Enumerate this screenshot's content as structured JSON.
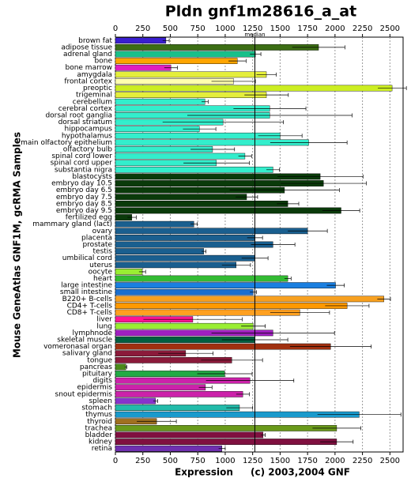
{
  "chart_data": {
    "type": "barh",
    "title": "Pldn gnf1m28616_a_at",
    "ylabel": "Mouse GeneAtlas GNF1M, gcRMA Samples",
    "xlabel": "Expression",
    "credit": "(c) 2003,2004 GNF",
    "median": 1270,
    "median_label": "median",
    "categories": [
      "brown fat",
      "adipose tissue",
      "adrenal gland",
      "bone",
      "bone marrow",
      "amygdala",
      "frontal cortex",
      "preoptic",
      "trigeminal",
      "cerebellum",
      "cerebral cortex",
      "dorsal root ganglia",
      "dorsal striatum",
      "hippocampus",
      "hypothalamus",
      "main olfactory epithelium",
      "olfactory bulb",
      "spinal cord lower",
      "spinal cord upper",
      "substantia nigra",
      "blastocysts",
      "embryo day 10.5",
      "embryo day 6.5",
      "embryo day 7.5",
      "embryo day 8.5",
      "embryo day 9.5",
      "fertilized egg",
      "mammary gland (lact)",
      "ovary",
      "placenta",
      "prostate",
      "testis",
      "umbilical cord",
      "uterus",
      "oocyte",
      "heart",
      "large intestine",
      "small intestine",
      "B220+ B-cells",
      "CD4+ T-cells",
      "CD8+ T-cells",
      "liver",
      "lung",
      "lymphnode",
      "skeletal muscle",
      "vomeronasal organ",
      "salivary gland",
      "tongue",
      "pancreas",
      "pituitary",
      "digits",
      "epidermis",
      "snout epidermis",
      "spleen",
      "stomach",
      "thymus",
      "thyroid",
      "trachea",
      "bladder",
      "kidney",
      "retina"
    ],
    "values": [
      460,
      1850,
      1275,
      1110,
      505,
      1375,
      1075,
      2520,
      1375,
      815,
      1405,
      1405,
      980,
      765,
      1500,
      1760,
      885,
      1180,
      920,
      1435,
      1865,
      1895,
      1540,
      1195,
      1570,
      2055,
      150,
      715,
      1750,
      1270,
      1435,
      805,
      1270,
      1100,
      245,
      1570,
      2005,
      1255,
      2445,
      2110,
      1680,
      705,
      1255,
      1435,
      1270,
      1960,
      640,
      1060,
      95,
      995,
      1225,
      820,
      1160,
      365,
      1130,
      2220,
      375,
      2015,
      1345,
      2015,
      970
    ],
    "errors": [
      30,
      240,
      50,
      80,
      60,
      90,
      200,
      130,
      200,
      30,
      330,
      750,
      550,
      150,
      200,
      350,
      200,
      60,
      300,
      60,
      390,
      390,
      500,
      100,
      100,
      170,
      40,
      30,
      180,
      70,
      200,
      20,
      120,
      130,
      30,
      30,
      80,
      30,
      60,
      200,
      270,
      450,
      110,
      560,
      300,
      370,
      250,
      280,
      10,
      250,
      400,
      60,
      60,
      20,
      120,
      380,
      180,
      220,
      20,
      150,
      30
    ],
    "colors": [
      "#3a1fd0",
      "#3c6e14",
      "#19c08a",
      "#ffa500",
      "#e020c0",
      "#e4ee3c",
      "#ffffb0",
      "#ccee22",
      "#e4ee3c",
      "#33eecc",
      "#33eecc",
      "#33eecc",
      "#33eecc",
      "#33eecc",
      "#33eecc",
      "#33eecc",
      "#33eecc",
      "#33eecc",
      "#33eecc",
      "#33eecc",
      "#0a3a0a",
      "#0a3a0a",
      "#0a3a0a",
      "#0a3a0a",
      "#0a3a0a",
      "#0a3a0a",
      "#0a3a0a",
      "#1a5f8f",
      "#1a5f8f",
      "#1a5f8f",
      "#1a5f8f",
      "#1a5f8f",
      "#1a5f8f",
      "#1a5f8f",
      "#99ee33",
      "#33bb33",
      "#1a7fe0",
      "#1a6fd0",
      "#f7a020",
      "#ff9900",
      "#ffa020",
      "#ff1493",
      "#99ee33",
      "#a020c0",
      "#006040",
      "#a03010",
      "#8b1a3a",
      "#8b1a3a",
      "#4a8a1a",
      "#22aa44",
      "#cc22aa",
      "#cc22aa",
      "#cc22aa",
      "#8833cc",
      "#22bbaa",
      "#1a9acc",
      "#a07020",
      "#6a9a1a",
      "#801040",
      "#801040",
      "#7030b0"
    ],
    "xlim": [
      0,
      2620
    ],
    "xticks": [
      0,
      250,
      500,
      750,
      1000,
      1250,
      1500,
      1750,
      2000,
      2250,
      2500
    ],
    "grid": true
  }
}
